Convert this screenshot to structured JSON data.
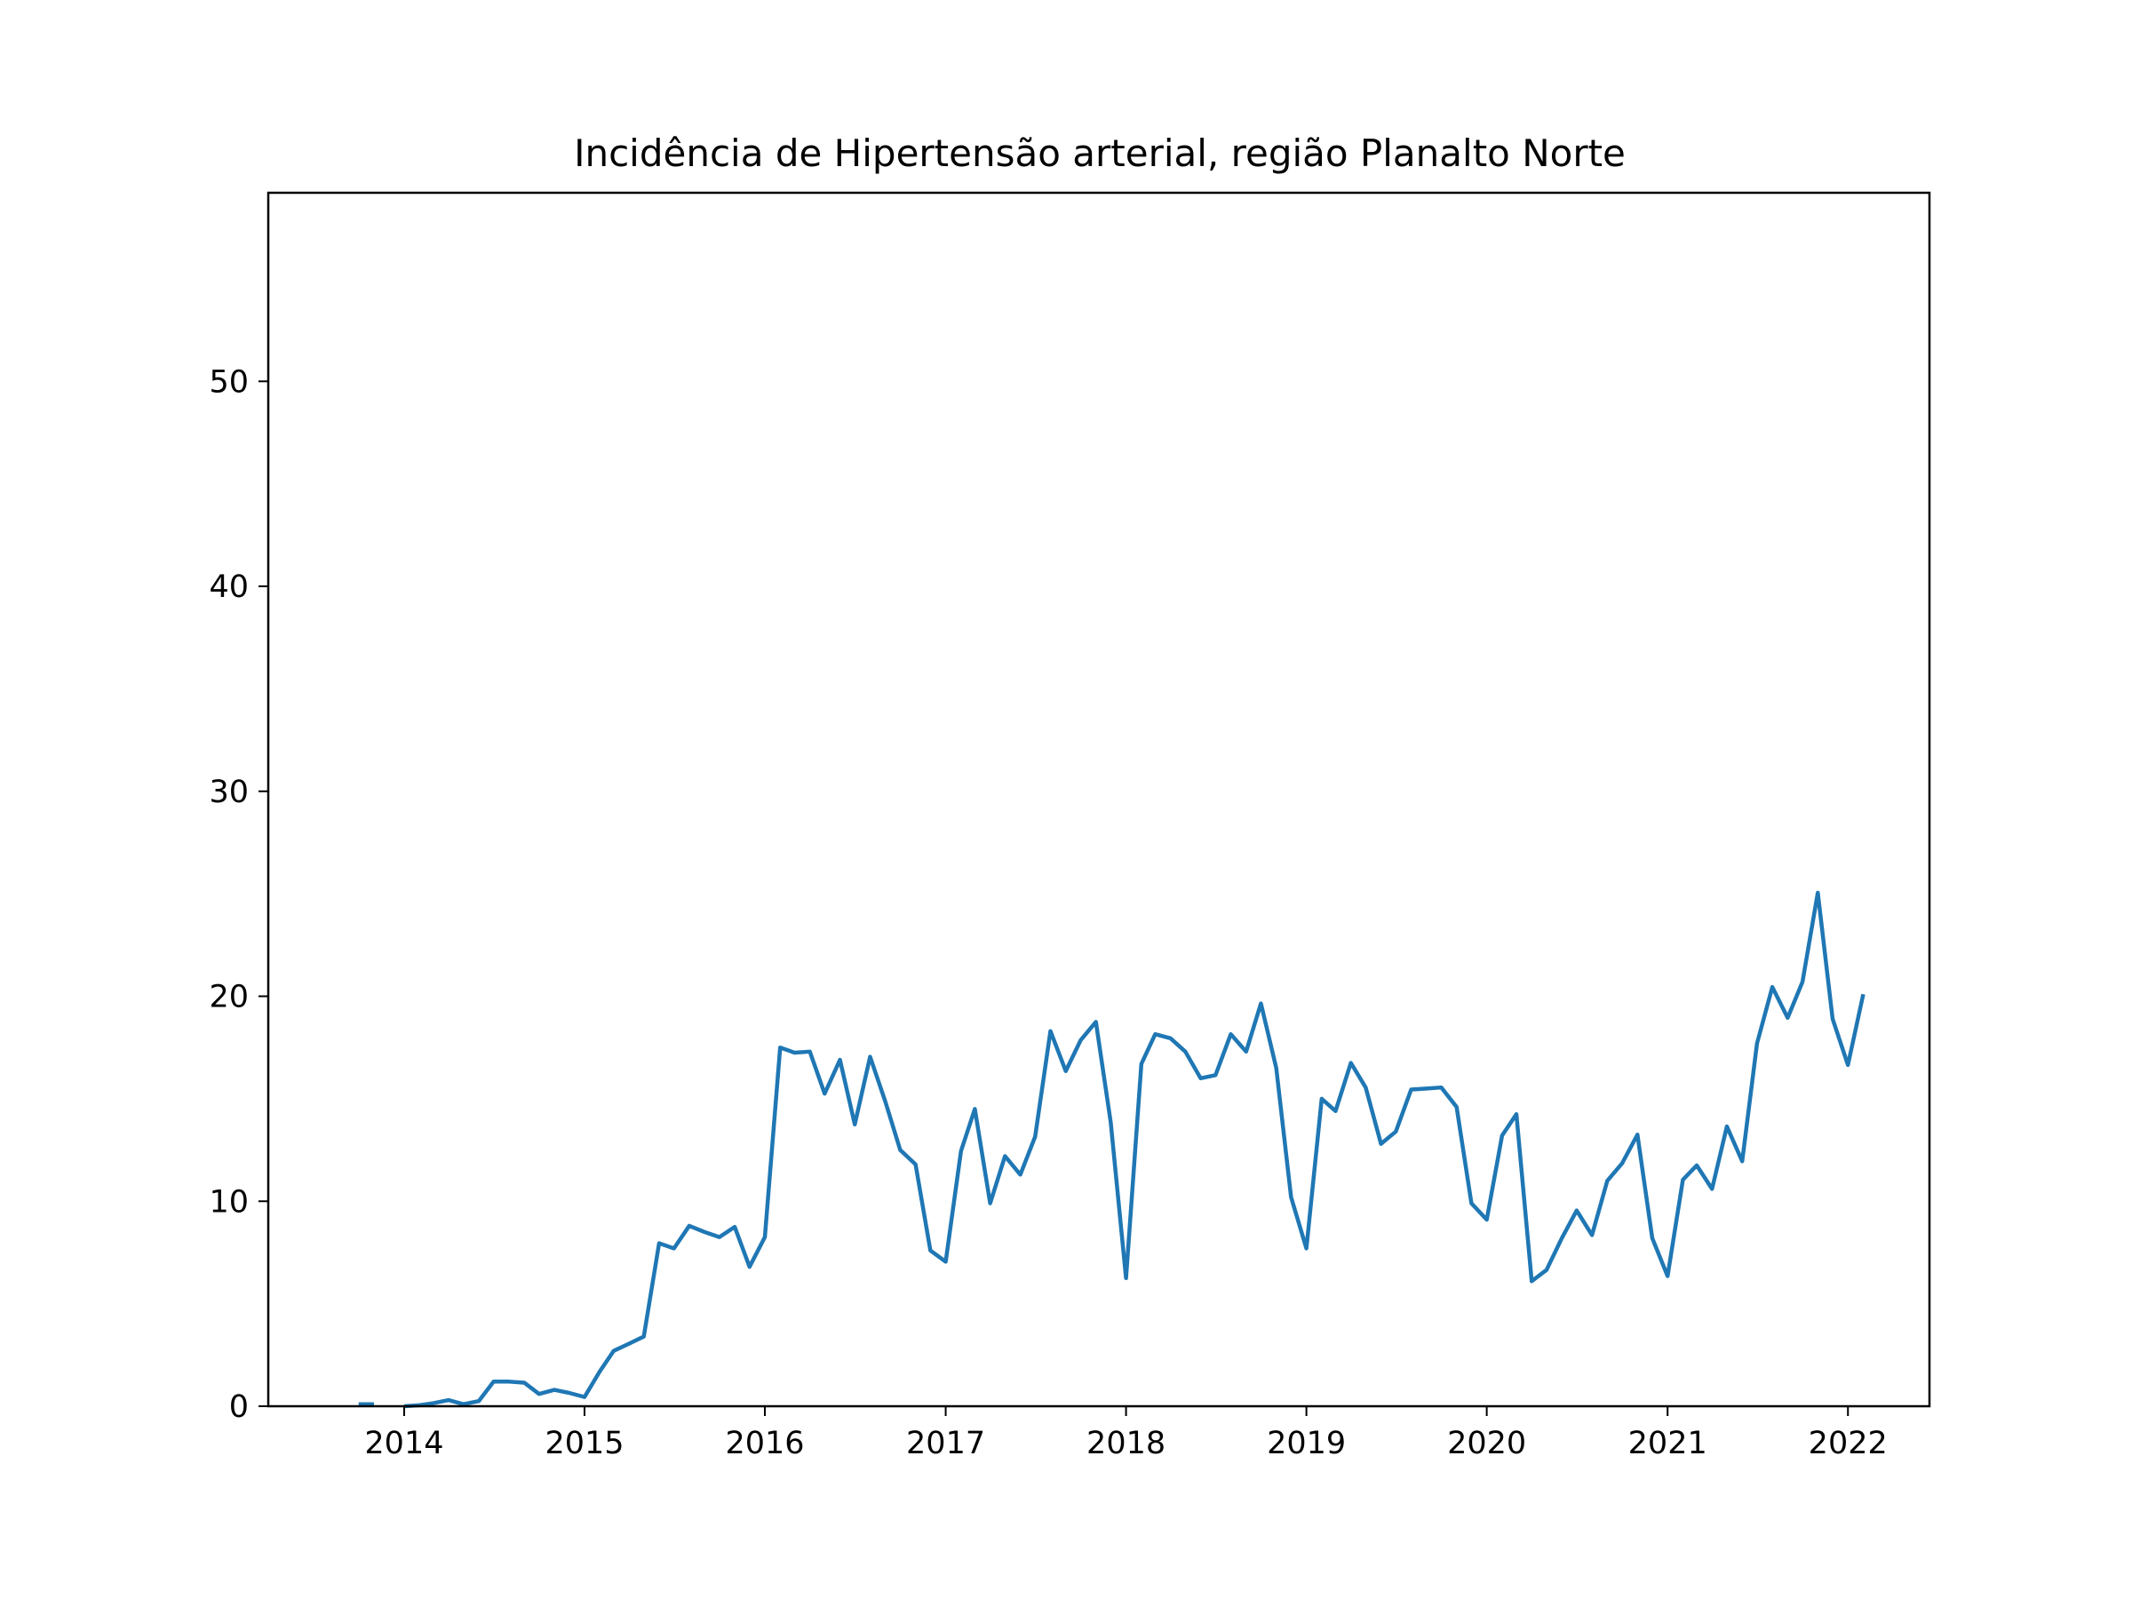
{
  "chart_data": {
    "type": "line",
    "title": "Incidência de Hipertensão arterial, região Planalto Norte",
    "xlabel": "",
    "ylabel": "",
    "xlim": [
      "2013-04-01",
      "2022-06-15"
    ],
    "ylim": [
      0,
      59.2
    ],
    "grid": false,
    "legend": "none",
    "x_ticks": [
      "2014",
      "2015",
      "2016",
      "2017",
      "2018",
      "2019",
      "2020",
      "2021",
      "2022"
    ],
    "y_ticks": [
      "0",
      "10",
      "20",
      "30",
      "40",
      "50"
    ],
    "colors": {
      "line": "#1f77b4",
      "axes": "#000000",
      "background": "#ffffff"
    },
    "series": [
      {
        "segments": [
          {
            "x": [
              "2013-10-01",
              "2013-11-01"
            ],
            "values": [
              0.1,
              0.1
            ]
          },
          {
            "x": [
              "2014-01-01",
              "2014-02-01",
              "2014-03-01",
              "2014-04-01",
              "2014-05-01",
              "2014-06-01",
              "2014-07-01",
              "2014-08-01",
              "2014-09-01",
              "2014-10-01",
              "2014-11-01",
              "2014-12-01",
              "2015-01-01",
              "2015-02-01",
              "2015-03-01",
              "2015-04-01",
              "2015-05-01",
              "2015-06-01",
              "2015-07-01",
              "2015-08-01",
              "2015-09-01",
              "2015-10-01",
              "2015-11-01",
              "2015-12-01",
              "2016-01-01",
              "2016-02-01",
              "2016-03-01",
              "2016-04-01",
              "2016-05-01",
              "2016-06-01",
              "2016-07-01",
              "2016-08-01",
              "2016-09-01",
              "2016-10-01",
              "2016-11-01",
              "2016-12-01",
              "2017-01-01",
              "2017-02-01",
              "2017-03-01",
              "2017-04-01",
              "2017-05-01",
              "2017-06-01",
              "2017-07-01",
              "2017-08-01",
              "2017-09-01",
              "2017-10-01",
              "2017-11-01",
              "2017-12-01",
              "2018-01-01",
              "2018-02-01",
              "2018-03-01",
              "2018-04-01",
              "2018-05-01",
              "2018-06-01",
              "2018-07-01",
              "2018-08-01",
              "2018-09-01",
              "2018-10-01",
              "2018-11-01",
              "2018-12-01",
              "2019-01-01",
              "2019-02-01",
              "2019-03-01",
              "2019-04-01",
              "2019-05-01",
              "2019-06-01",
              "2019-07-01",
              "2019-08-01",
              "2019-09-01",
              "2019-10-01",
              "2019-11-01",
              "2019-12-01",
              "2020-01-01",
              "2020-02-01",
              "2020-03-01",
              "2020-04-01",
              "2020-05-01",
              "2020-06-01",
              "2020-07-01",
              "2020-08-01",
              "2020-09-01",
              "2020-10-01",
              "2020-11-01",
              "2020-12-01",
              "2021-01-01",
              "2021-02-01",
              "2021-03-01",
              "2021-04-01",
              "2021-05-01",
              "2021-06-01",
              "2021-07-01",
              "2021-08-01",
              "2021-09-01",
              "2021-10-01",
              "2021-11-01",
              "2021-12-01",
              "2022-01-01",
              "2022-02-01"
            ],
            "values": [
              0.0,
              0.05,
              0.15,
              0.3,
              0.1,
              0.25,
              1.2,
              1.2,
              1.15,
              0.6,
              0.8,
              0.65,
              0.45,
              1.7,
              2.7,
              3.05,
              3.4,
              7.95,
              7.7,
              8.8,
              8.5,
              8.25,
              8.75,
              6.8,
              8.25,
              17.5,
              17.25,
              17.3,
              15.25,
              16.9,
              13.75,
              17.05,
              14.85,
              12.5,
              11.8,
              7.6,
              7.05,
              12.45,
              14.5,
              9.9,
              12.2,
              11.3,
              13.15,
              18.3,
              16.35,
              17.85,
              18.75,
              13.85,
              6.25,
              16.7,
              18.15,
              17.95,
              17.3,
              16.0,
              16.15,
              18.15,
              17.3,
              19.65,
              16.5,
              10.2,
              7.7,
              15.0,
              14.4,
              16.75,
              15.55,
              12.8,
              13.4,
              15.45,
              15.5,
              15.55,
              14.6,
              9.9,
              9.1,
              13.2,
              14.25,
              6.1,
              6.65,
              8.2,
              9.55,
              8.35,
              11.0,
              11.85,
              13.25,
              8.2,
              6.35,
              11.05,
              11.75,
              10.6,
              13.65,
              11.95,
              17.7,
              20.45,
              18.95,
              20.7,
              25.05,
              18.9,
              16.65,
              20.1
            ]
          }
        ]
      }
    ]
  }
}
